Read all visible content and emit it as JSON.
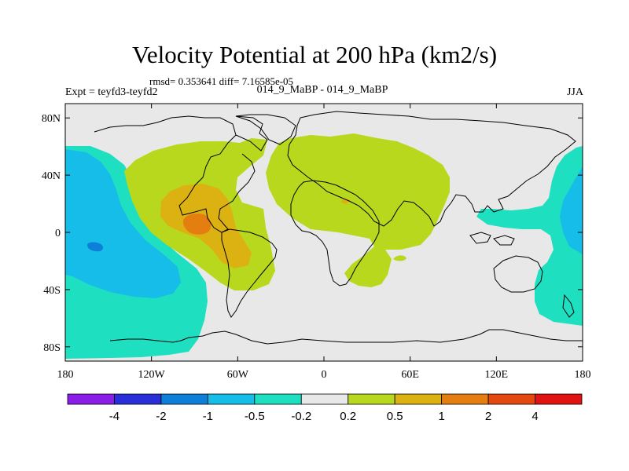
{
  "title": "Velocity Potential at 200 hPa (km2/s)",
  "stats": "rmsd= 0.353641 diff= 7.16585e-05",
  "experiment": "Expt = teyfd3-teyfd2",
  "case_label": "014_9_MaBP - 014_9_MaBP",
  "season": "JJA",
  "map": {
    "projection": "cylindrical-equidistant",
    "lon_range": [
      -180,
      180
    ],
    "lat_range": [
      -90,
      90
    ],
    "x_ticks": [
      {
        "value": -180,
        "label": "180"
      },
      {
        "value": -120,
        "label": "120W"
      },
      {
        "value": -60,
        "label": "60W"
      },
      {
        "value": 0,
        "label": "0"
      },
      {
        "value": 60,
        "label": "60E"
      },
      {
        "value": 120,
        "label": "120E"
      },
      {
        "value": 180,
        "label": "180"
      }
    ],
    "y_ticks": [
      {
        "value": 80,
        "label": "80N"
      },
      {
        "value": 40,
        "label": "40N"
      },
      {
        "value": 0,
        "label": "0"
      },
      {
        "value": -40,
        "label": "40S"
      },
      {
        "value": -80,
        "label": "80S"
      }
    ]
  },
  "colorbar": {
    "colors": [
      "#8a1ee8",
      "#2a2ed8",
      "#0d7fd8",
      "#15bde8",
      "#1ee0c0",
      "#e8e8e8",
      "#b8d81e",
      "#dcb212",
      "#e47e10",
      "#e4480e",
      "#e01212"
    ],
    "labels": [
      "-4",
      "-2",
      "-1",
      "-0.5",
      "-0.2",
      "0.2",
      "0.5",
      "1",
      "2",
      "4"
    ]
  },
  "colors": {
    "background": "#e8e8e8",
    "coast": "#000000"
  }
}
